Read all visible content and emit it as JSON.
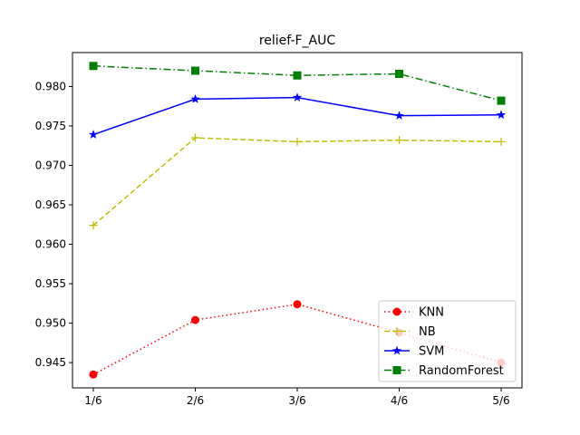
{
  "chart_data": {
    "type": "line",
    "title": "relief-F_AUC",
    "xlabel": "",
    "ylabel": "",
    "categories": [
      "1/6",
      "2/6",
      "3/6",
      "4/6",
      "5/6"
    ],
    "ylim": [
      0.9418,
      0.9843
    ],
    "yticks": [
      0.945,
      0.95,
      0.955,
      0.96,
      0.965,
      0.97,
      0.975,
      0.98
    ],
    "ytick_labels": [
      "0.945",
      "0.950",
      "0.955",
      "0.960",
      "0.965",
      "0.970",
      "0.975",
      "0.980"
    ],
    "grid": false,
    "legend_position": "bottom-right",
    "series": [
      {
        "name": "KNN",
        "values": [
          0.9435,
          0.9504,
          0.9524,
          0.9488,
          0.945
        ],
        "color": "#ff0000",
        "dash": "1.5,3",
        "marker": "circle"
      },
      {
        "name": "NB",
        "values": [
          0.9624,
          0.9735,
          0.973,
          0.9732,
          0.973
        ],
        "color": "#bfbf00",
        "dash": "6,3",
        "marker": "plus"
      },
      {
        "name": "SVM",
        "values": [
          0.9739,
          0.9784,
          0.9786,
          0.9763,
          0.9764
        ],
        "color": "#0000ff",
        "dash": "",
        "marker": "star"
      },
      {
        "name": "RandomForest",
        "values": [
          0.9826,
          0.982,
          0.9814,
          0.9816,
          0.9782
        ],
        "color": "#008000",
        "dash": "8,3,1.5,3",
        "marker": "square"
      }
    ]
  }
}
